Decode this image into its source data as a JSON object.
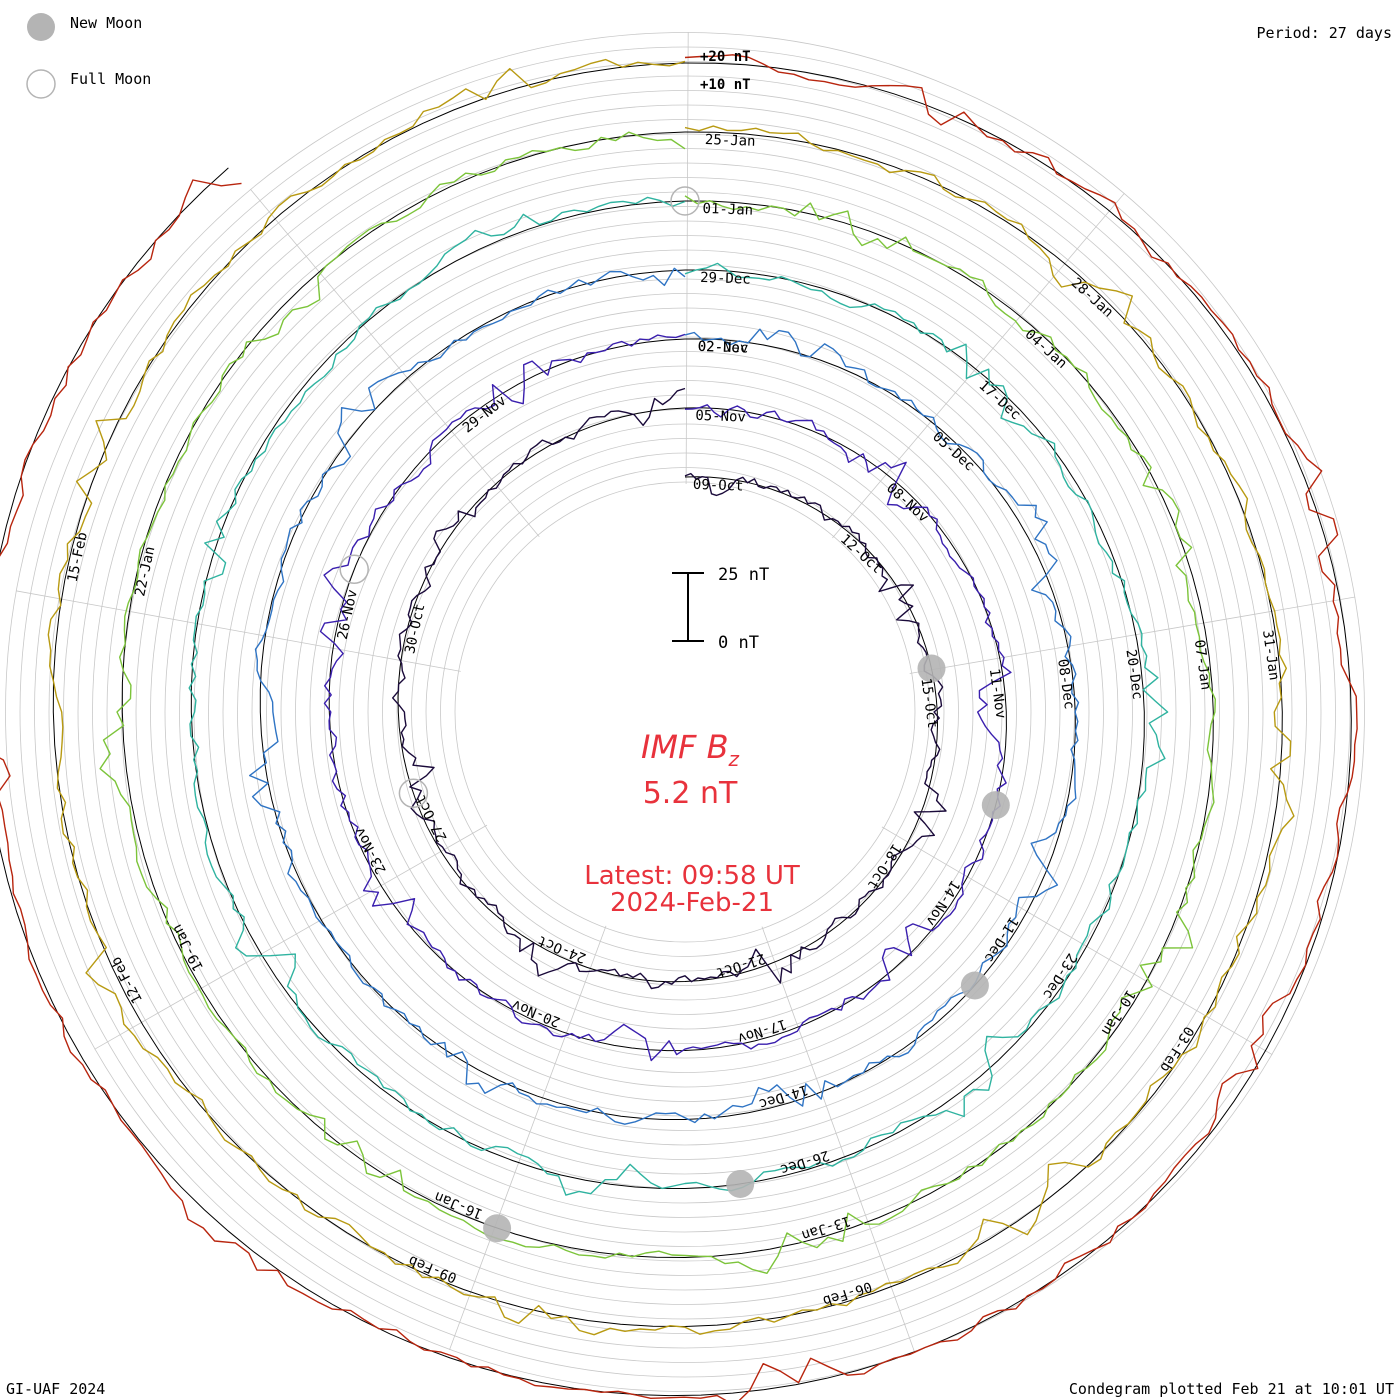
{
  "header": {
    "legend_new_moon": "New Moon",
    "legend_full_moon": "Full Moon",
    "period": "Period: 27 days"
  },
  "footer": {
    "credit": "GI-UAF 2024",
    "plotted": "Condegram plotted Feb 21 at 10:01 UT"
  },
  "center": {
    "parameter_symbol": "IMF B",
    "parameter_subscript": "z",
    "value_text": "5.2 nT",
    "latest_label": "Latest: 09:58 UT",
    "latest_date": "2024-Feb-21"
  },
  "chart_data": {
    "type": "condegram",
    "title": "IMF Bz",
    "units": "nT",
    "period_days": 27,
    "current_value": 5.2,
    "scale_bar": {
      "top_label": "25 nT",
      "bottom_label": "0 nT",
      "value": 25
    },
    "outer_scale_labels": [
      "+20 nT",
      "+10 nT"
    ],
    "rings": [
      {
        "index": 0,
        "color": "#1a0a3a",
        "date_labels": [
          "09-Oct",
          "12-Oct",
          "15-Oct",
          "18-Oct",
          "21-Oct",
          "24-Oct",
          "27-Oct",
          "30-Oct"
        ]
      },
      {
        "index": 1,
        "color": "#3a1fae",
        "date_labels": [
          "05-Nov",
          "08-Nov",
          "11-Nov",
          "14-Nov",
          "17-Nov",
          "20-Nov",
          "23-Nov",
          "26-Nov",
          "29-Nov",
          "02-Nov"
        ]
      },
      {
        "index": 2,
        "color": "#2f74c4",
        "date_labels": [
          "02-Dec",
          "05-Dec",
          "08-Dec",
          "11-Dec",
          "14-Dec"
        ]
      },
      {
        "index": 3,
        "color": "#2fb3a0",
        "date_labels": [
          "29-Dec",
          "17-Dec",
          "20-Dec",
          "23-Dec",
          "26-Dec"
        ]
      },
      {
        "index": 4,
        "color": "#7cc43a",
        "date_labels": [
          "01-Jan",
          "04-Jan",
          "07-Jan",
          "10-Jan",
          "13-Jan",
          "16-Jan",
          "19-Jan",
          "22-Jan"
        ]
      },
      {
        "index": 5,
        "color": "#b89a12",
        "date_labels": [
          "25-Jan",
          "28-Jan",
          "31-Jan",
          "03-Feb",
          "06-Feb",
          "09-Feb",
          "12-Feb",
          "15-Feb"
        ]
      },
      {
        "index": 6,
        "color": "#b8250e",
        "date_labels": []
      }
    ],
    "moon_markers": [
      {
        "type": "new",
        "date": "15-Oct"
      },
      {
        "type": "new",
        "date": "13-Nov"
      },
      {
        "type": "new",
        "date": "12-Dec"
      },
      {
        "type": "new",
        "date": "11-Jan"
      },
      {
        "type": "new",
        "date": "09-Feb"
      },
      {
        "type": "full",
        "date": "28-Oct"
      },
      {
        "type": "full",
        "date": "27-Nov"
      },
      {
        "type": "full",
        "date": "25-Jan"
      }
    ]
  }
}
